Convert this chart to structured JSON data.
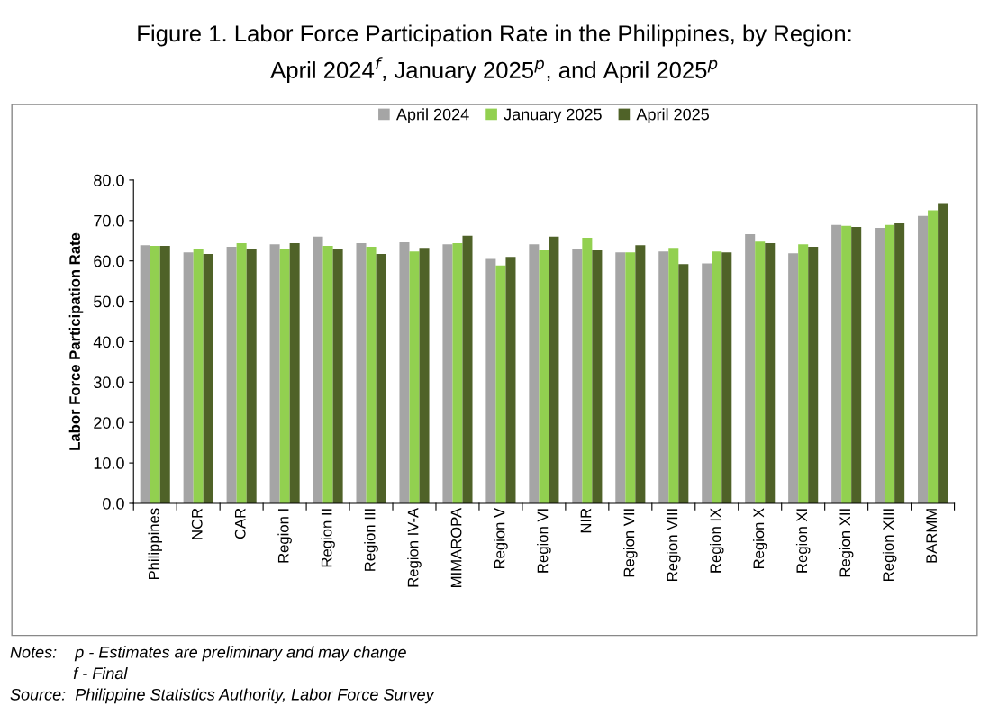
{
  "chart_data": {
    "type": "bar",
    "title": "Figure 1. Labor Force Participation Rate in the Philippines, by Region:\nApril 2024$^{f}$, January 2025$^{p}$, and April 2025$^{p}$",
    "ylabel": "Labor Force Participation Rate",
    "categories": [
      "Philippines",
      "NCR",
      "CAR",
      "Region I",
      "Region II",
      "Region III",
      "Region IV-A",
      "MIMAROPA",
      "Region V",
      "Region VI",
      "NIR",
      "Region VII",
      "Region VIII",
      "Region IX",
      "Region X",
      "Region XI",
      "Region XII",
      "Region XIII",
      "BARMM"
    ],
    "series": [
      {
        "name": "April 2024",
        "color": "#a5a5a5",
        "values": [
          63.9,
          62.1,
          63.5,
          64.1,
          66.0,
          64.4,
          64.6,
          64.1,
          60.5,
          64.1,
          63.0,
          62.1,
          62.3,
          59.4,
          66.6,
          61.9,
          68.9,
          68.2,
          71.1
        ]
      },
      {
        "name": "January 2025",
        "color": "#92d050",
        "values": [
          63.7,
          63.0,
          64.4,
          63.0,
          63.7,
          63.5,
          62.3,
          64.4,
          58.9,
          62.6,
          65.7,
          62.1,
          63.2,
          62.3,
          64.8,
          64.1,
          68.7,
          68.9,
          72.5
        ]
      },
      {
        "name": "April 2025",
        "color": "#4f6228",
        "values": [
          63.7,
          61.7,
          62.8,
          64.4,
          63.0,
          61.7,
          63.2,
          66.2,
          61.0,
          66.0,
          62.6,
          63.9,
          59.2,
          62.1,
          64.4,
          63.5,
          68.4,
          69.3,
          74.3
        ]
      }
    ],
    "ylim": [
      0,
      80
    ],
    "yticks": [
      {
        "value": 0,
        "label": "0.0"
      },
      {
        "value": 10,
        "label": "10.0"
      },
      {
        "value": 20,
        "label": "20.0"
      },
      {
        "value": 30,
        "label": "30.0"
      },
      {
        "value": 40,
        "label": "40.0"
      },
      {
        "value": 50,
        "label": "50.0"
      },
      {
        "value": 60,
        "label": "60.0"
      },
      {
        "value": 70,
        "label": "70.0"
      },
      {
        "value": 80,
        "label": "80.0"
      }
    ],
    "grid": false,
    "legend": "top",
    "annotations": [
      "Notes:    p - Estimates are preliminary and may change",
      "              f - Final",
      "Source:  Philippine Statistics Authority, Labor Force Survey"
    ]
  }
}
